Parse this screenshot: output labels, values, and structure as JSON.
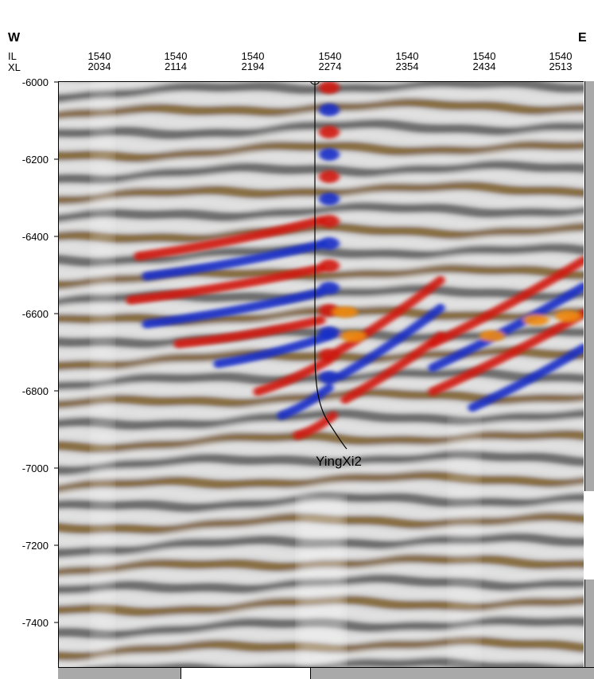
{
  "header": {
    "west_label": "W",
    "east_label": "E",
    "il_label": "IL",
    "xl_label": "XL"
  },
  "traces": [
    {
      "il": "1540",
      "xl": "2034"
    },
    {
      "il": "1540",
      "xl": "2114"
    },
    {
      "il": "1540",
      "xl": "2194"
    },
    {
      "il": "1540",
      "xl": "2274"
    },
    {
      "il": "1540",
      "xl": "2354"
    },
    {
      "il": "1540",
      "xl": "2434"
    },
    {
      "il": "1540",
      "xl": "2513"
    }
  ],
  "depth_axis": {
    "ticks": [
      "-6000",
      "-6200",
      "-6400",
      "-6600",
      "-6800",
      "-7000",
      "-7200",
      "-7400"
    ]
  },
  "well": {
    "name": "YingXi2"
  },
  "colors": {
    "peak_red": "#d01a08",
    "peak_orange": "#f08a10",
    "trough_blue": "#1a2fc8",
    "brown": "#6e4a12",
    "tan": "#b89a6a",
    "grey_dark": "#4a4a4a",
    "grey_light": "#e6e6e6"
  }
}
